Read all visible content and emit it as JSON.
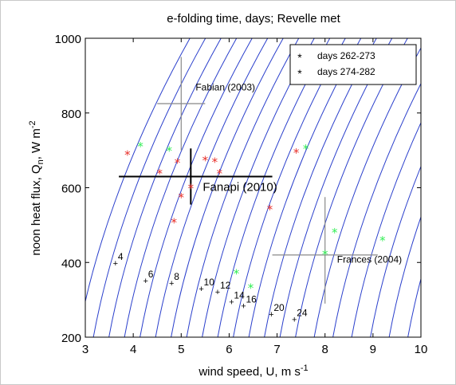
{
  "chart_data": {
    "type": "scatter",
    "title": "e-folding time, days; Revelle met",
    "xlabel": "wind speed, U, m s",
    "xlabel_sup": "-1",
    "ylabel_parts": [
      "noon heat flux, Q",
      "n",
      ", W m",
      "-2"
    ],
    "xlim": [
      3,
      10
    ],
    "ylim": [
      200,
      1000
    ],
    "x_ticks": [
      3,
      4,
      5,
      6,
      7,
      8,
      9,
      10
    ],
    "y_ticks": [
      200,
      400,
      600,
      800,
      1000
    ],
    "grid": false,
    "legend_position": "top-right",
    "series": [
      {
        "name": "days 262-273",
        "marker": "*",
        "color": "#e8302a",
        "points": [
          [
            3.88,
            690
          ],
          [
            4.55,
            640
          ],
          [
            4.85,
            508
          ],
          [
            4.92,
            668
          ],
          [
            5.0,
            575
          ],
          [
            5.2,
            600
          ],
          [
            5.5,
            675
          ],
          [
            5.7,
            670
          ],
          [
            5.8,
            640
          ],
          [
            6.85,
            543
          ],
          [
            7.4,
            695
          ]
        ]
      },
      {
        "name": "days 274-282",
        "marker": "*",
        "color": "#33ee55",
        "points": [
          [
            4.15,
            712
          ],
          [
            4.75,
            700
          ],
          [
            6.15,
            372
          ],
          [
            6.45,
            333
          ],
          [
            7.6,
            706
          ],
          [
            8.0,
            423
          ],
          [
            8.2,
            482
          ],
          [
            9.2,
            460
          ]
        ]
      }
    ],
    "crosses": [
      {
        "label": "Fabian (2003)",
        "x": 5.0,
        "y": 825,
        "x_range": [
          4.5,
          5.5
        ],
        "y_range": [
          700,
          950
        ],
        "color": "#888888"
      },
      {
        "label": "Fanapi (2010)",
        "x": 5.2,
        "y": 630,
        "x_range": [
          3.7,
          6.9
        ],
        "y_range": [
          555,
          705
        ],
        "color": "#000000"
      },
      {
        "label": "Frances (2004)",
        "x": 8.0,
        "y": 420,
        "x_range": [
          6.9,
          9.1
        ],
        "y_range": [
          290,
          575
        ],
        "color": "#888888"
      }
    ],
    "contour_labels": [
      {
        "label": "4",
        "x": 3.63,
        "y": 398
      },
      {
        "label": "6",
        "x": 4.26,
        "y": 352
      },
      {
        "label": "8",
        "x": 4.8,
        "y": 345
      },
      {
        "label": "10",
        "x": 5.42,
        "y": 330
      },
      {
        "label": "12",
        "x": 5.76,
        "y": 322
      },
      {
        "label": "14",
        "x": 6.05,
        "y": 295
      },
      {
        "label": "16",
        "x": 6.3,
        "y": 284
      },
      {
        "label": "20",
        "x": 6.88,
        "y": 262
      },
      {
        "label": "24",
        "x": 7.36,
        "y": 248
      }
    ],
    "contours_color": "#2a3fcc"
  }
}
